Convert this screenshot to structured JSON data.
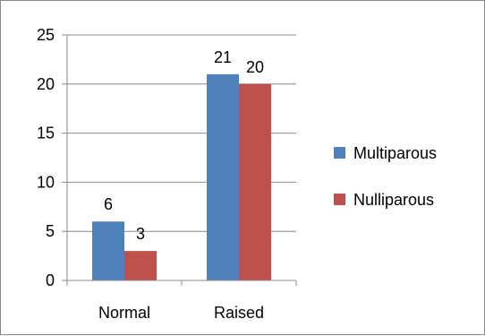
{
  "chart_data": {
    "type": "bar",
    "categories": [
      "Normal",
      "Raised"
    ],
    "series": [
      {
        "name": "Multiparous",
        "values": [
          6,
          21
        ],
        "color": "#4F81BD"
      },
      {
        "name": "Nulliparous",
        "values": [
          3,
          20
        ],
        "color": "#C0504D"
      }
    ],
    "y_ticks": [
      0,
      5,
      10,
      15,
      20,
      25
    ],
    "ylim": [
      0,
      25
    ],
    "data_labels": true,
    "grid": "horizontal",
    "legend_position": "right"
  }
}
